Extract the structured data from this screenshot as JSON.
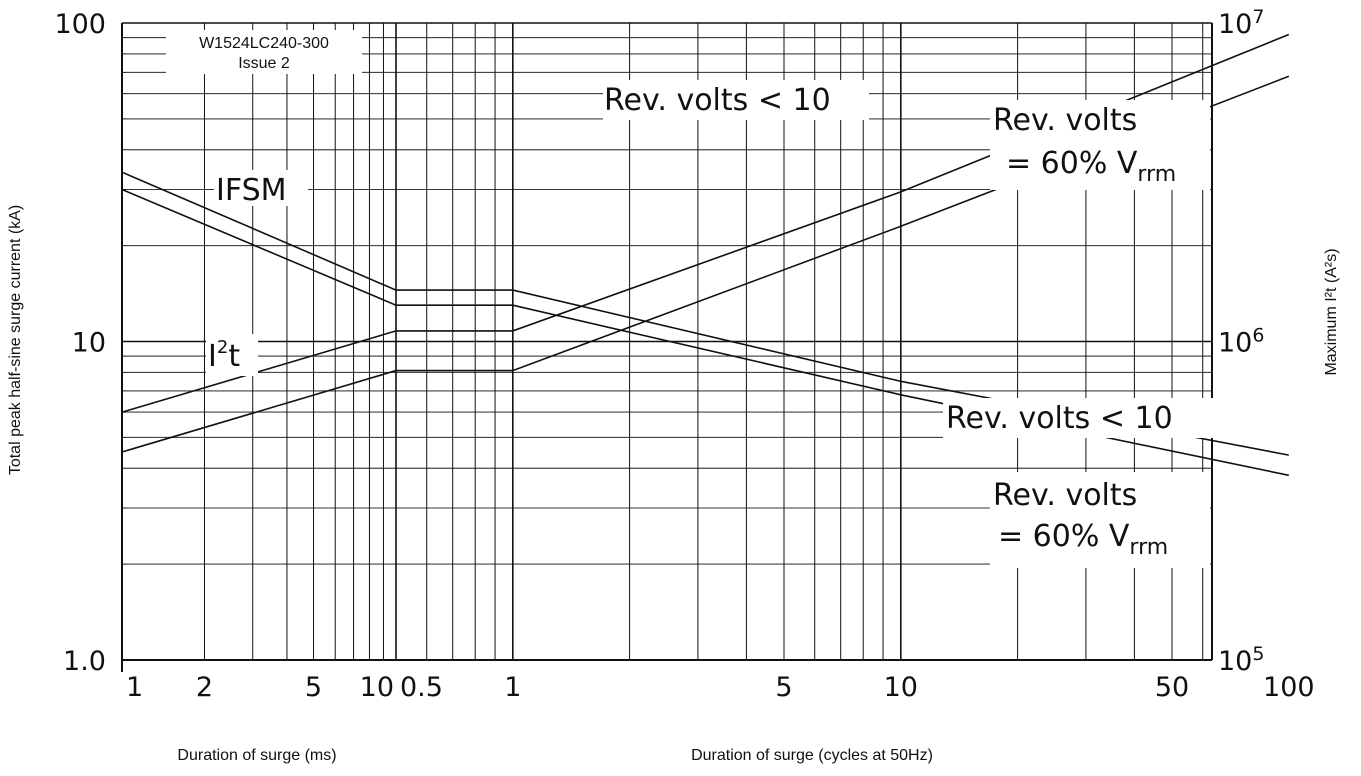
{
  "document": {
    "id": "W1524LC240-300",
    "issue": "Issue 2"
  },
  "chart_data": {
    "type": "line",
    "title": "",
    "y_left_label": "Total peak half-sine surge current (kA)",
    "y_right_label": "Maximum I²t (A²s)",
    "x_label_ms": "Duration of surge (ms)",
    "x_label_cycles": "Duration of surge (cycles at 50Hz)",
    "x_scale": "log",
    "y_scale": "log",
    "ylim_left": [
      1,
      100
    ],
    "ylim_right": [
      100000,
      10000000
    ],
    "grid": true,
    "x_segments": [
      {
        "unit": "ms",
        "range": [
          1,
          10
        ]
      },
      {
        "unit": "cycles at 50Hz",
        "range": [
          0.5,
          300
        ]
      }
    ],
    "tick_labels": {
      "x_ms": [
        "1",
        "2",
        "5",
        "10"
      ],
      "x_cycles": [
        "0.5",
        "1",
        "5",
        "10",
        "50",
        "100"
      ],
      "y_left": [
        "1.0",
        "10",
        "100"
      ],
      "y_right_base": "10",
      "y_right_exp": [
        "5",
        "6",
        "7"
      ]
    },
    "annotations": {
      "ifsm": "IFSM",
      "i2t_main": "I",
      "i2t_sup": "2",
      "i2t_tail": "t",
      "rev_lt_10": "Rev. volts < 10",
      "rev_volts": "Rev. volts",
      "rev_eq_prefix": "= 60% V",
      "rev_eq_sub": "rrm"
    },
    "series": [
      {
        "name": "IFSM, Rev. volts < 10",
        "axis": "left_kA",
        "points": [
          [
            "1ms",
            34
          ],
          [
            "10ms",
            14.5
          ],
          [
            "0.5c",
            14.5
          ],
          [
            "1c",
            14.5
          ],
          [
            "10c",
            7.5
          ],
          [
            "100c",
            4.4
          ]
        ]
      },
      {
        "name": "IFSM, Rev. volts = 60% Vrrm",
        "axis": "left_kA",
        "points": [
          [
            "1ms",
            30
          ],
          [
            "10ms",
            13
          ],
          [
            "0.5c",
            13
          ],
          [
            "1c",
            13
          ],
          [
            "10c",
            6.8
          ],
          [
            "100c",
            3.8
          ]
        ]
      },
      {
        "name": "I²t, Rev. volts < 10",
        "axis": "right_A2s",
        "points": [
          [
            "1ms",
            600000
          ],
          [
            "10ms",
            1080000
          ],
          [
            "0.5c",
            1080000
          ],
          [
            "1c",
            1080000
          ],
          [
            "10c",
            2950000
          ],
          [
            "100c",
            9200000
          ]
        ]
      },
      {
        "name": "I²t, Rev. volts = 60% Vrrm",
        "axis": "right_A2s",
        "points": [
          [
            "1ms",
            450000
          ],
          [
            "10ms",
            810000
          ],
          [
            "0.5c",
            810000
          ],
          [
            "1c",
            810000
          ],
          [
            "10c",
            2300000
          ],
          [
            "100c",
            6800000
          ]
        ]
      }
    ]
  }
}
